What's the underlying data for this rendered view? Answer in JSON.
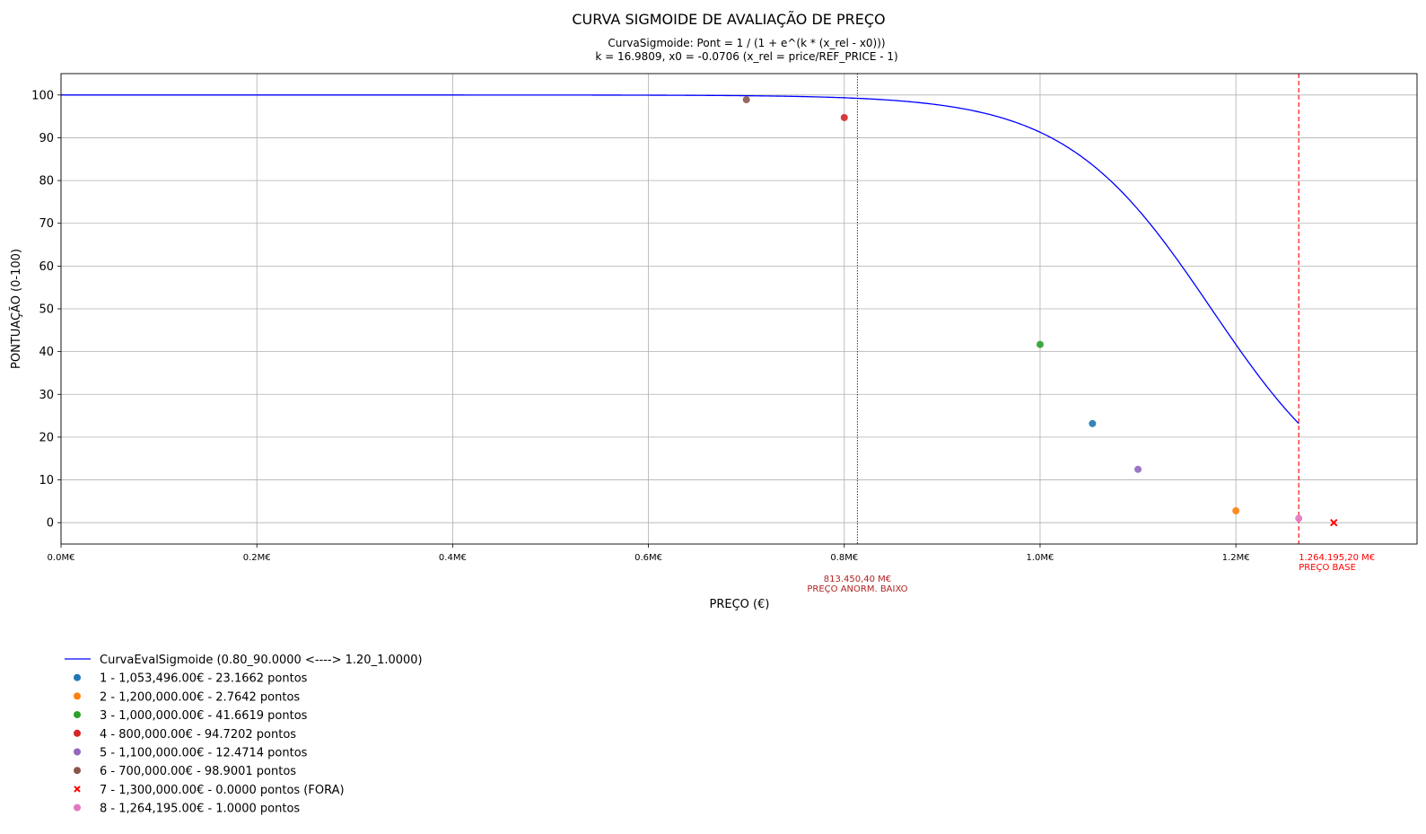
{
  "chart_data": {
    "type": "line",
    "title": "CURVA SIGMOIDE DE AVALIAÇÃO DE PREÇO",
    "subtitle_lines": [
      "CurvaSigmoide: Pont = 1 / (1 + e^(k * (x_rel - x0)))",
      "k = 16.9809, x0 = -0.0706 (x_rel = price/REF_PRICE - 1)"
    ],
    "xlabel": "PREÇO (€)",
    "ylabel": "PONTUAÇÃO (0-100)",
    "xlim": [
      0,
      1385000
    ],
    "ylim": [
      -5,
      105
    ],
    "x_ticks": [
      {
        "value": 0,
        "label": "0.0M€"
      },
      {
        "value": 200000,
        "label": "0.2M€"
      },
      {
        "value": 400000,
        "label": "0.4M€"
      },
      {
        "value": 600000,
        "label": "0.6M€"
      },
      {
        "value": 800000,
        "label": "0.8M€"
      },
      {
        "value": 1000000,
        "label": "1.0M€"
      },
      {
        "value": 1200000,
        "label": "1.2M€"
      }
    ],
    "y_ticks": [
      0,
      10,
      20,
      30,
      40,
      50,
      60,
      70,
      80,
      90,
      100
    ],
    "grid": true,
    "legend_position": "bottom-left",
    "curve": {
      "name": "CurvaEvalSigmoide (0.80_90.0000 <----> 1.20_1.0000)",
      "color": "#0000ff",
      "ref_price": 1264195.2,
      "k": 16.9809,
      "x0": -0.0706,
      "x_range": [
        0,
        1264195.2
      ]
    },
    "reference_lines": [
      {
        "x": 813450.4,
        "color": "#b22222",
        "style": "dotted",
        "label_lines": [
          "813.450,40 M€",
          "PREÇO ANORM. BAIXO"
        ]
      },
      {
        "x": 1264195.2,
        "color": "#ff0000",
        "style": "dashed",
        "label_lines": [
          "1.264.195,20 M€",
          "PREÇO BASE"
        ]
      }
    ],
    "series": [
      {
        "name": "1 - 1,053,496.00€ - 23.1662 pontos",
        "x": 1053496,
        "y": 23.1662,
        "color": "#1f77b4",
        "marker": "circle"
      },
      {
        "name": "2 - 1,200,000.00€ - 2.7642 pontos",
        "x": 1200000,
        "y": 2.7642,
        "color": "#ff7f0e",
        "marker": "circle"
      },
      {
        "name": "3 - 1,000,000.00€ - 41.6619 pontos",
        "x": 1000000,
        "y": 41.6619,
        "color": "#2ca02c",
        "marker": "circle"
      },
      {
        "name": "4 - 800,000.00€ - 94.7202 pontos",
        "x": 800000,
        "y": 94.7202,
        "color": "#d62728",
        "marker": "circle"
      },
      {
        "name": "5 - 1,100,000.00€ - 12.4714 pontos",
        "x": 1100000,
        "y": 12.4714,
        "color": "#9467bd",
        "marker": "circle"
      },
      {
        "name": "6 - 700,000.00€ - 98.9001 pontos",
        "x": 700000,
        "y": 98.9001,
        "color": "#8c564b",
        "marker": "circle"
      },
      {
        "name": "7 - 1,300,000.00€ - 0.0000 pontos (FORA)",
        "x": 1300000,
        "y": 0,
        "color": "#ff0000",
        "marker": "x"
      },
      {
        "name": "8 - 1,264,195.00€ - 1.0000 pontos",
        "x": 1264195,
        "y": 1.0,
        "color": "#e377c2",
        "marker": "circle"
      }
    ]
  }
}
